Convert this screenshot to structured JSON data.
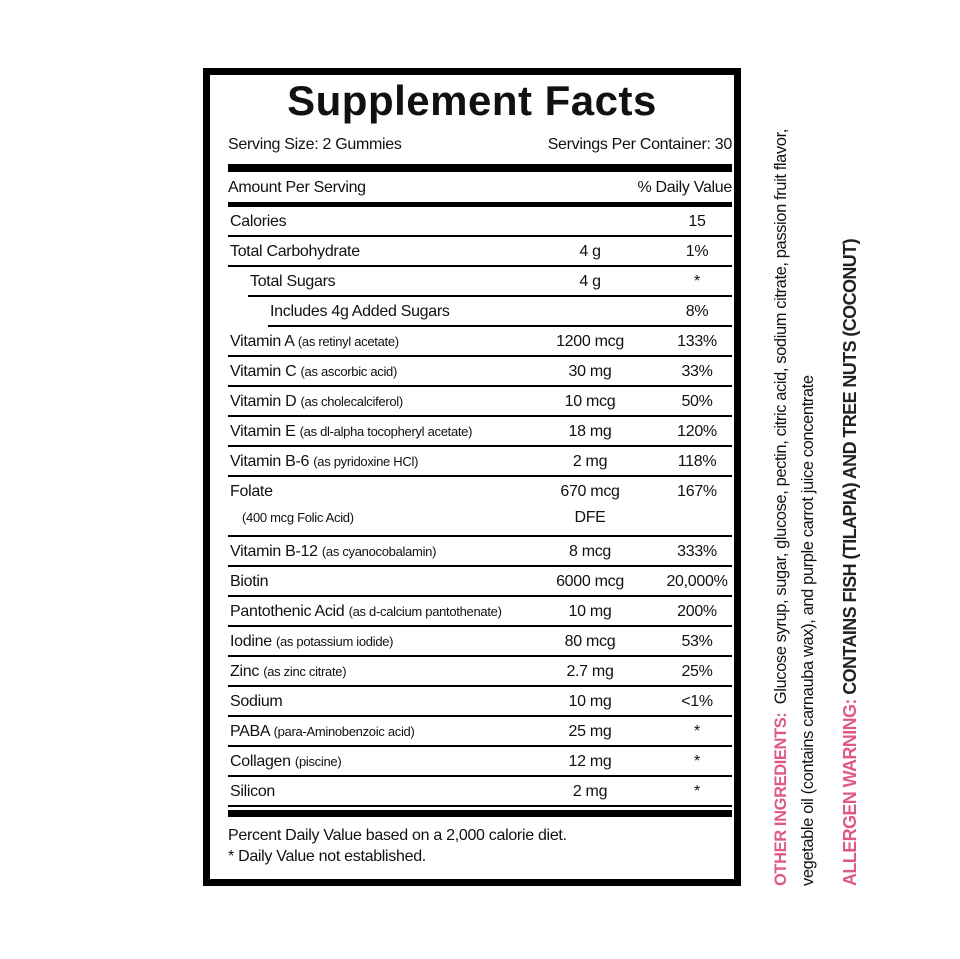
{
  "header": {
    "title": "Supplement Facts",
    "serving_size": "Serving Size: 2 Gummies",
    "servings_per_container": "Servings Per Container: 30"
  },
  "table": {
    "column_headers": [
      "Amount Per Serving",
      "% Daily Value"
    ],
    "rows": [
      {
        "name": "Calories",
        "daily_value": "15"
      },
      {
        "name": "Total Carbohydrate",
        "amount": "4 g",
        "daily_value": "1%"
      },
      {
        "name": "Total Sugars",
        "amount": "4 g",
        "daily_value": "*"
      },
      {
        "name": "Includes 4g Added Sugars",
        "daily_value": "8%"
      },
      {
        "name": "Vitamin A",
        "detail": "(as retinyl acetate)",
        "amount": "1200 mcg",
        "daily_value": "133%"
      },
      {
        "name": "Vitamin C",
        "detail": "(as ascorbic acid)",
        "amount": "30 mg",
        "daily_value": "33%"
      },
      {
        "name": "Vitamin D",
        "detail": "(as cholecalciferol)",
        "amount": "10 mcg",
        "daily_value": "50%"
      },
      {
        "name": "Vitamin E",
        "detail": "(as dl-alpha tocopheryl acetate)",
        "amount": "18 mg",
        "daily_value": "120%"
      },
      {
        "name": "Vitamin B-6",
        "detail": "(as pyridoxine HCl)",
        "amount": "2 mg",
        "daily_value": "118%"
      },
      {
        "name": "Folate",
        "detail": "(400 mcg Folic Acid)",
        "amount": "670 mcg",
        "amount_note": "DFE",
        "daily_value": "167%"
      },
      {
        "name": "Vitamin B-12",
        "detail": "(as cyanocobalamin)",
        "amount": "8 mcg",
        "daily_value": "333%"
      },
      {
        "name": "Biotin",
        "amount": "6000 mcg",
        "daily_value": "20,000%"
      },
      {
        "name": "Pantothenic Acid",
        "detail": "(as d-calcium pantothenate)",
        "amount": "10 mg",
        "daily_value": "200%"
      },
      {
        "name": "Iodine",
        "detail": "(as potassium iodide)",
        "amount": "80 mcg",
        "daily_value": "53%"
      },
      {
        "name": "Zinc",
        "detail": "(as zinc citrate)",
        "amount": "2.7 mg",
        "daily_value": "25%"
      },
      {
        "name": "Sodium",
        "amount": "10 mg",
        "daily_value": "<1%"
      },
      {
        "name": "PABA",
        "detail": "(para-Aminobenzoic acid)",
        "amount": "25 mg",
        "daily_value": "*"
      },
      {
        "name": "Collagen",
        "detail": "(piscine)",
        "amount": "12 mg",
        "daily_value": "*"
      },
      {
        "name": "Silicon",
        "amount": "2 mg",
        "daily_value": "*"
      }
    ]
  },
  "footnotes": [
    "Percent Daily Value based on a 2,000 calorie diet.",
    "* Daily Value not established."
  ],
  "side_panel": {
    "ingredients_label": "OTHER INGREDIENTS:",
    "ingredients_text": "Glucose syrup, sugar, glucose, pectin, citric acid, sodium citrate, passion fruit flavor, vegetable oil (contains carnauba wax), and purple carrot juice concentrate",
    "allergen_label": "ALLERGEN WARNING:",
    "allergen_text": "CONTAINS FISH (TILAPIA) AND TREE NUTS (COCONUT)"
  }
}
